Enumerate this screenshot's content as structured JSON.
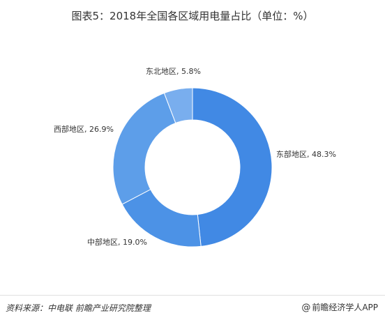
{
  "title": "图表5：2018年全国各区域用电量占比（单位：%）",
  "footer": {
    "source": "资料来源：中电联 前瞻产业研究院整理",
    "brand": "前瞻经济学人APP",
    "brand_icon": "at-sign-icon"
  },
  "chart_data": {
    "type": "pie",
    "donut": true,
    "title": "图表5：2018年全国各区域用电量占比（单位：%）",
    "slices": [
      {
        "name": "东部地区",
        "value": 48.3,
        "label": "东部地区, 48.3%",
        "color": "#4189e4"
      },
      {
        "name": "中部地区",
        "value": 19.0,
        "label": "中部地区, 19.0%",
        "color": "#4c92e6"
      },
      {
        "name": "西部地区",
        "value": 26.9,
        "label": "西部地区, 26.9%",
        "color": "#5d9ee9"
      },
      {
        "name": "东北地区",
        "value": 5.8,
        "label": "东北地区, 5.8%",
        "color": "#79aeee"
      }
    ],
    "legend": "none"
  }
}
